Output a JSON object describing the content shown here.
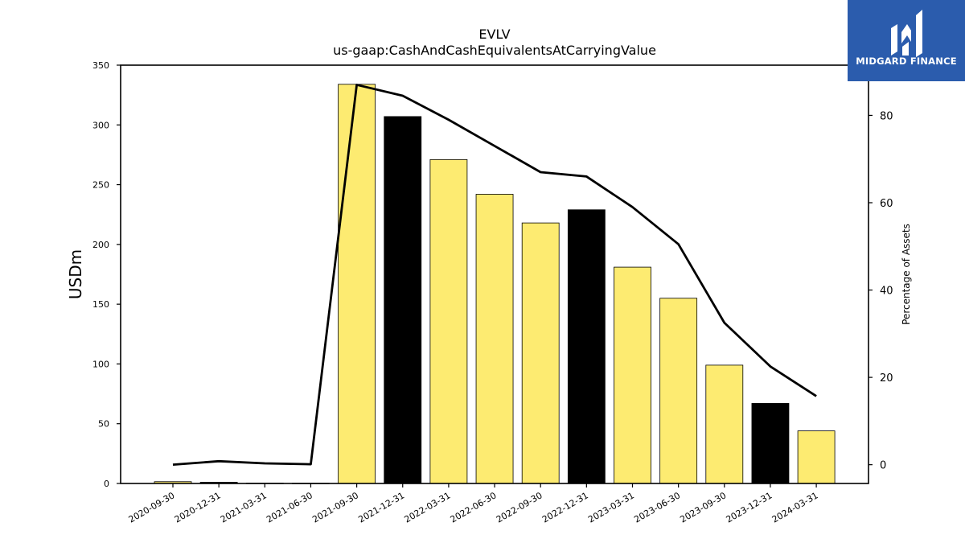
{
  "logo": {
    "text": "MIDGARD FINANCE",
    "bg_color": "#2b5cad",
    "mark": "midgard-logo-mark"
  },
  "chart_data": {
    "type": "bar",
    "title": "EVLV",
    "subtitle": "us-gaap:CashAndCashEquivalentsAtCarryingValue",
    "ylabel": "USDm",
    "ylabel_right": "Percentage of Assets",
    "ylim": [
      0,
      350
    ],
    "ylim_right": [
      -4.3,
      91.5
    ],
    "yticks": [
      0,
      50,
      100,
      150,
      200,
      250,
      300,
      350
    ],
    "yticks_right": [
      0,
      20,
      40,
      60,
      80
    ],
    "categories": [
      "2020-09-30",
      "2020-12-31",
      "2021-03-31",
      "2021-06-30",
      "2021-09-30",
      "2021-12-31",
      "2022-03-31",
      "2022-06-30",
      "2022-09-30",
      "2022-12-31",
      "2023-03-31",
      "2023-06-30",
      "2023-09-30",
      "2023-12-31",
      "2024-03-31"
    ],
    "values": [
      1.5,
      1.0,
      0.3,
      0.2,
      334,
      307,
      271,
      242,
      218,
      229,
      181,
      155,
      99,
      67,
      44
    ],
    "bar_colors": [
      "#fdeb71",
      "#000000",
      "#fdeb71",
      "#fdeb71",
      "#fdeb71",
      "#000000",
      "#fdeb71",
      "#fdeb71",
      "#fdeb71",
      "#000000",
      "#fdeb71",
      "#fdeb71",
      "#fdeb71",
      "#000000",
      "#fdeb71"
    ],
    "line_series": {
      "values": [
        0.0,
        0.8,
        0.3,
        0.1,
        87.0,
        84.5,
        79.0,
        73.0,
        67.0,
        66.0,
        59.0,
        50.5,
        32.5,
        22.5,
        15.7
      ],
      "color": "#000000"
    },
    "grid": false
  }
}
